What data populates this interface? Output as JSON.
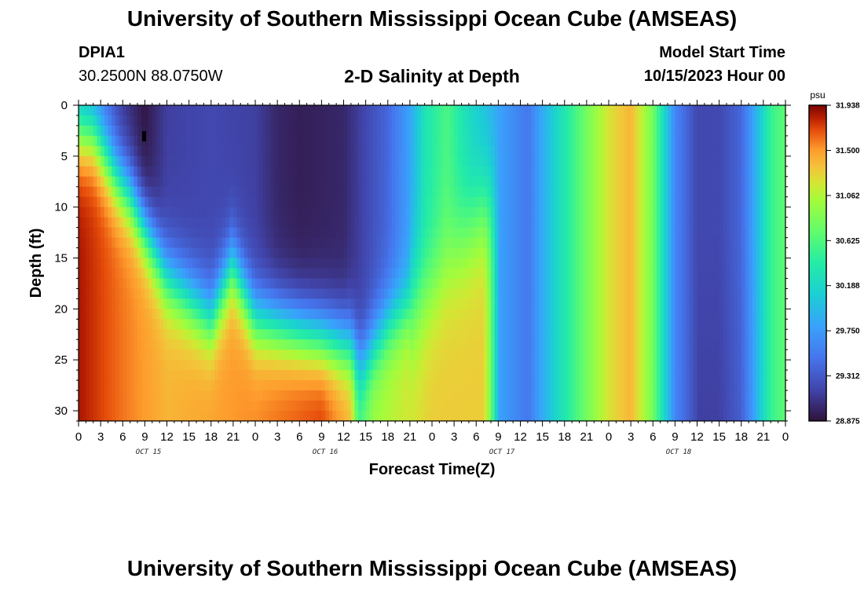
{
  "header": {
    "title": "University of Southern Mississippi Ocean Cube (AMSEAS)",
    "station_id": "DPIA1",
    "coordinates": "30.2500N  88.0750W",
    "subtitle": "2-D Salinity at Depth",
    "model_start_label": "Model Start Time",
    "model_start_value": "10/15/2023 Hour 00"
  },
  "footer": {
    "title": "University of Southern Mississippi Ocean Cube (AMSEAS)"
  },
  "chart_data": {
    "type": "heatmap",
    "title": "2-D Salinity at Depth",
    "xlabel": "Forecast Time(Z)",
    "ylabel": "Depth (ft)",
    "x_hours_range": [
      0,
      96
    ],
    "x_tick_step_hours": 3,
    "x_tick_labels": [
      "0",
      "3",
      "6",
      "9",
      "12",
      "15",
      "18",
      "21",
      "0",
      "3",
      "6",
      "9",
      "12",
      "15",
      "18",
      "21",
      "0",
      "3",
      "6",
      "9",
      "12",
      "15",
      "18",
      "21",
      "0",
      "3",
      "6",
      "9",
      "12",
      "15",
      "18",
      "21",
      "0"
    ],
    "day_labels": [
      "OCT 15",
      "OCT 16",
      "OCT 17",
      "OCT 18"
    ],
    "y_range": [
      0,
      31
    ],
    "y_ticks": [
      0,
      5,
      10,
      15,
      20,
      25,
      30
    ],
    "colorbar": {
      "unit": "psu",
      "min": 28.875,
      "max": 31.938,
      "labels": [
        "31.938",
        "31.500",
        "31.062",
        "30.625",
        "30.188",
        "29.750",
        "29.312",
        "28.875"
      ]
    },
    "surface_salinity_psu": [
      {
        "hour": 0,
        "value": 29.8
      },
      {
        "hour": 3,
        "value": 29.5
      },
      {
        "hour": 6,
        "value": 29.1
      },
      {
        "hour": 9,
        "value": 28.9
      },
      {
        "hour": 12,
        "value": 29.15
      },
      {
        "hour": 18,
        "value": 29.2
      },
      {
        "hour": 24,
        "value": 29.15
      },
      {
        "hour": 27,
        "value": 29.0
      },
      {
        "hour": 30,
        "value": 28.95
      },
      {
        "hour": 36,
        "value": 29.0
      },
      {
        "hour": 42,
        "value": 29.4
      },
      {
        "hour": 45,
        "value": 29.8
      },
      {
        "hour": 47,
        "value": 30.3
      },
      {
        "hour": 50,
        "value": 30.6
      },
      {
        "hour": 53,
        "value": 30.2
      },
      {
        "hour": 57,
        "value": 29.8
      },
      {
        "hour": 61,
        "value": 29.5
      },
      {
        "hour": 65,
        "value": 30.2
      },
      {
        "hour": 69,
        "value": 30.8
      },
      {
        "hour": 72,
        "value": 31.2
      },
      {
        "hour": 75,
        "value": 31.4
      },
      {
        "hour": 78,
        "value": 30.8
      },
      {
        "hour": 81,
        "value": 29.6
      },
      {
        "hour": 84,
        "value": 29.2
      },
      {
        "hour": 87,
        "value": 29.2
      },
      {
        "hour": 90,
        "value": 29.4
      },
      {
        "hour": 92,
        "value": 29.9
      },
      {
        "hour": 94,
        "value": 30.5
      },
      {
        "hour": 96,
        "value": 30.7
      }
    ],
    "bottom_salinity_psu": [
      {
        "hour": 0,
        "value": 31.85
      },
      {
        "hour": 6,
        "value": 31.6
      },
      {
        "hour": 12,
        "value": 31.4
      },
      {
        "hour": 24,
        "value": 31.55
      },
      {
        "hour": 33,
        "value": 31.75
      },
      {
        "hour": 37,
        "value": 31.4
      },
      {
        "hour": 38,
        "value": 30.6
      },
      {
        "hour": 40,
        "value": 31.0
      },
      {
        "hour": 48,
        "value": 31.3
      },
      {
        "hour": 55,
        "value": 31.3
      },
      {
        "hour": 56,
        "value": 30.8
      },
      {
        "hour": 57,
        "value": 29.9
      }
    ]
  }
}
